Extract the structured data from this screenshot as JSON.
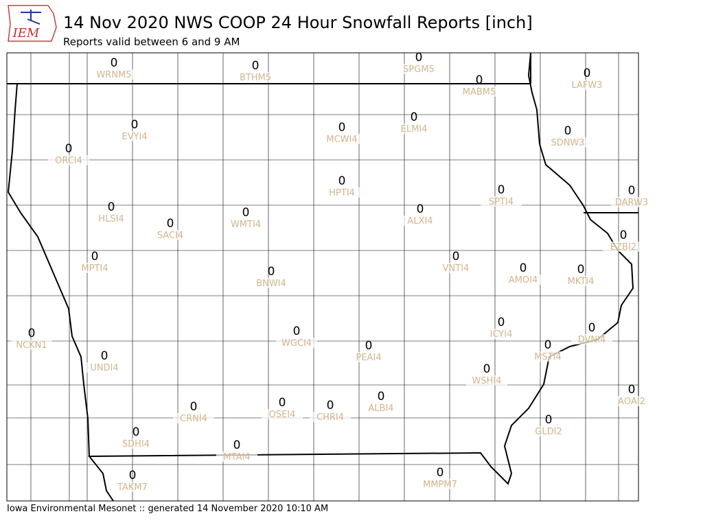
{
  "header": {
    "logo_text": "IEM",
    "title": "14 Nov 2020 NWS COOP 24 Hour Snowfall Reports [inch]",
    "subtitle": "Reports valid between 6 and 9 AM"
  },
  "stations": [
    {
      "id": "WRNM5",
      "value": 0
    },
    {
      "id": "BTHM5",
      "value": 0
    },
    {
      "id": "SPGM5",
      "value": 0
    },
    {
      "id": "MABM5",
      "value": 0
    },
    {
      "id": "LAFW3",
      "value": 0
    },
    {
      "id": "EVYI4",
      "value": 0
    },
    {
      "id": "MCWI4",
      "value": 0
    },
    {
      "id": "ELMI4",
      "value": 0
    },
    {
      "id": "SDNW3",
      "value": 0
    },
    {
      "id": "ORCI4",
      "value": 0
    },
    {
      "id": "HPTI4",
      "value": 0
    },
    {
      "id": "SPTI4",
      "value": 0
    },
    {
      "id": "DARW3",
      "value": 0
    },
    {
      "id": "HLSI4",
      "value": 0
    },
    {
      "id": "ALXI4",
      "value": 0
    },
    {
      "id": "SACI4",
      "value": 0
    },
    {
      "id": "WMTI4",
      "value": 0
    },
    {
      "id": "EZBI2",
      "value": 0
    },
    {
      "id": "MPTI4",
      "value": 0
    },
    {
      "id": "VNTI4",
      "value": 0
    },
    {
      "id": "AMOI4",
      "value": 0
    },
    {
      "id": "MKTI4",
      "value": 0
    },
    {
      "id": "BNWI4",
      "value": 0
    },
    {
      "id": "NCKN1",
      "value": 0
    },
    {
      "id": "WGCI4",
      "value": 0
    },
    {
      "id": "ICYI4",
      "value": 0
    },
    {
      "id": "DVNI4",
      "value": 0
    },
    {
      "id": "PEAI4",
      "value": 0
    },
    {
      "id": "MSTI4",
      "value": 0
    },
    {
      "id": "UNDI4",
      "value": 0
    },
    {
      "id": "WSHI4",
      "value": 0
    },
    {
      "id": "AOAI2",
      "value": 0
    },
    {
      "id": "ALBI4",
      "value": 0
    },
    {
      "id": "OSEI4",
      "value": 0
    },
    {
      "id": "CHRI4",
      "value": 0
    },
    {
      "id": "CRNI4",
      "value": 0
    },
    {
      "id": "GLDI2",
      "value": 0
    },
    {
      "id": "SDHI4",
      "value": 0
    },
    {
      "id": "MTAI4",
      "value": 0
    },
    {
      "id": "TAKM7",
      "value": 0
    },
    {
      "id": "MMPM7",
      "value": 0
    }
  ],
  "footer": "Iowa Environmental Mesonet :: generated 14 November 2020 10:10 AM"
}
